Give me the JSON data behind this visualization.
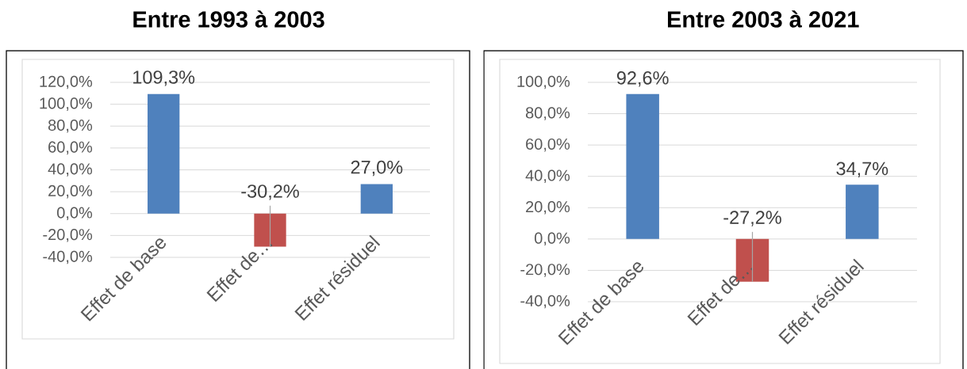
{
  "chart_data": [
    {
      "type": "bar",
      "title": "Entre 1993 à 2003",
      "categories": [
        "Effet de base",
        "Effet de…",
        "Effet résiduel"
      ],
      "values": [
        109.3,
        -30.2,
        27.0
      ],
      "colors": [
        "#4f81bd",
        "#c0504d",
        "#4f81bd"
      ],
      "value_labels": [
        "109,3%",
        "-30,2%",
        "27,0%"
      ],
      "ylim": [
        -40,
        120
      ],
      "yticks": [
        {
          "value": -40,
          "label": "-40,0%"
        },
        {
          "value": -20,
          "label": "-20,0%"
        },
        {
          "value": 0,
          "label": "0,0%"
        },
        {
          "value": 20,
          "label": "20,0%"
        },
        {
          "value": 40,
          "label": "40,0%"
        },
        {
          "value": 60,
          "label": "60,0%"
        },
        {
          "value": 80,
          "label": "80,0%"
        },
        {
          "value": 100,
          "label": "100,0%"
        },
        {
          "value": 120,
          "label": "120,0%"
        }
      ],
      "grid": "y"
    },
    {
      "type": "bar",
      "title": "Entre 2003 à 2021",
      "categories": [
        "Effet de base",
        "Effet de…",
        "Effet résiduel"
      ],
      "values": [
        92.6,
        -27.2,
        34.7
      ],
      "colors": [
        "#4f81bd",
        "#c0504d",
        "#4f81bd"
      ],
      "value_labels": [
        "92,6%",
        "-27,2%",
        "34,7%"
      ],
      "ylim": [
        -40,
        100
      ],
      "yticks": [
        {
          "value": -40,
          "label": "-40,0%"
        },
        {
          "value": -20,
          "label": "-20,0%"
        },
        {
          "value": 0,
          "label": "0,0%"
        },
        {
          "value": 20,
          "label": "20,0%"
        },
        {
          "value": 40,
          "label": "40,0%"
        },
        {
          "value": 60,
          "label": "60,0%"
        },
        {
          "value": 80,
          "label": "80,0%"
        },
        {
          "value": 100,
          "label": "100,0%"
        }
      ],
      "grid": "y"
    }
  ]
}
